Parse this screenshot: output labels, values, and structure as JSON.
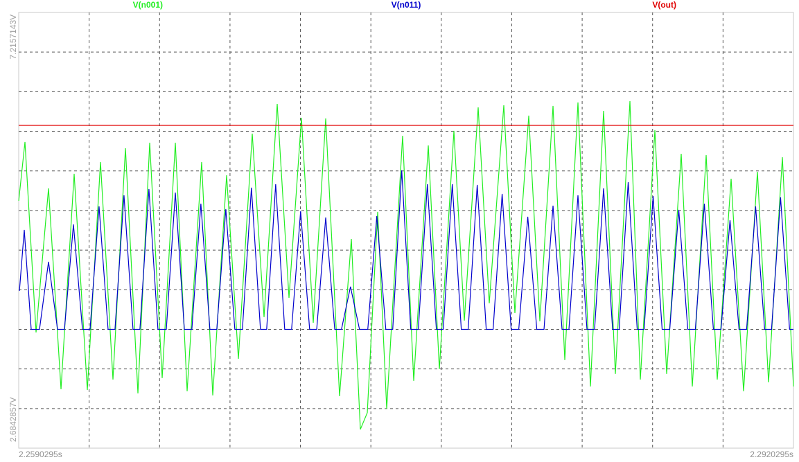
{
  "chart_data": {
    "type": "line",
    "legend": "top",
    "grid": true,
    "xlim": [
      2.2590295,
      2.2920295
    ],
    "ylim": [
      2.1807936,
      7.7192064
    ],
    "xticks": [
      {
        "value": 2.2590295,
        "label": "2.2590295s"
      },
      {
        "value": 2.2620295,
        "label": null
      },
      {
        "value": 2.2650295,
        "label": null
      },
      {
        "value": 2.2680295,
        "label": null
      },
      {
        "value": 2.2710295,
        "label": null
      },
      {
        "value": 2.2740295,
        "label": null
      },
      {
        "value": 2.2770295,
        "label": null
      },
      {
        "value": 2.2800295,
        "label": null
      },
      {
        "value": 2.2830295,
        "label": null
      },
      {
        "value": 2.2860295,
        "label": null
      },
      {
        "value": 2.2890295,
        "label": null
      },
      {
        "value": 2.2920295,
        "label": "2.2920295s"
      }
    ],
    "yticks": [
      {
        "value": 2.6842857,
        "label": "2.6842857V"
      },
      {
        "value": 3.1877778,
        "label": null
      },
      {
        "value": 3.6912698,
        "label": null
      },
      {
        "value": 4.1947619,
        "label": null
      },
      {
        "value": 4.698254,
        "label": null
      },
      {
        "value": 5.201746,
        "label": null
      },
      {
        "value": 5.7052381,
        "label": null
      },
      {
        "value": 6.2087302,
        "label": null
      },
      {
        "value": 6.7122222,
        "label": null
      },
      {
        "value": 7.2157143,
        "label": "7.2157143V"
      }
    ],
    "series": [
      {
        "name": "V(n001)",
        "color": "#22ee22",
        "x": [
          2.25903,
          2.259296,
          2.259768,
          2.260299,
          2.260831,
          2.261391,
          2.261952,
          2.262513,
          2.263044,
          2.263576,
          2.264107,
          2.264609,
          2.26514,
          2.265701,
          2.266203,
          2.266822,
          2.267295,
          2.267885,
          2.268387,
          2.268977,
          2.269479,
          2.27004,
          2.270542,
          2.271073,
          2.271575,
          2.272106,
          2.272696,
          2.273198,
          2.273582,
          2.273877,
          2.27432,
          2.274704,
          2.275382,
          2.275855,
          2.276475,
          2.276947,
          2.277567,
          2.27801,
          2.2786,
          2.279072,
          2.279692,
          2.280164,
          2.280755,
          2.281227,
          2.281788,
          2.28229,
          2.28285,
          2.283382,
          2.283942,
          2.284444,
          2.285064,
          2.285507,
          2.286127,
          2.286629,
          2.287248,
          2.287721,
          2.288311,
          2.288783,
          2.289374,
          2.289905,
          2.290495,
          2.290968,
          2.291558,
          2.292029
        ],
        "values": [
          5.325,
          6.073,
          3.652,
          5.483,
          2.93,
          5.668,
          2.921,
          5.818,
          3.053,
          5.994,
          2.877,
          6.064,
          3.071,
          6.064,
          2.904,
          5.818,
          2.851,
          5.65,
          3.317,
          6.179,
          3.846,
          6.557,
          4.092,
          6.381,
          3.775,
          6.372,
          2.842,
          4.84,
          2.419,
          2.631,
          5.184,
          2.683,
          6.152,
          3.036,
          6.029,
          3.185,
          6.214,
          3.802,
          6.513,
          4.022,
          6.54,
          3.898,
          6.408,
          3.793,
          6.531,
          3.3,
          6.575,
          2.965,
          6.469,
          3.124,
          6.592,
          3.053,
          6.223,
          3.124,
          5.923,
          2.965,
          5.906,
          3.053,
          5.606,
          2.904,
          5.694,
          3.018,
          5.879,
          2.965
        ]
      },
      {
        "name": "V(n011)",
        "color": "#0000cc",
        "x": [
          2.25906,
          2.259266,
          2.259561,
          2.259915,
          2.260299,
          2.260683,
          2.260977,
          2.261361,
          2.261745,
          2.262068,
          2.262452,
          2.262836,
          2.26313,
          2.263514,
          2.263898,
          2.264192,
          2.264576,
          2.26496,
          2.265317,
          2.265701,
          2.266085,
          2.266405,
          2.266789,
          2.267173,
          2.267467,
          2.267851,
          2.268235,
          2.268558,
          2.268942,
          2.269326,
          2.269591,
          2.269975,
          2.270359,
          2.270653,
          2.271037,
          2.271421,
          2.271722,
          2.272106,
          2.27249,
          2.272777,
          2.273161,
          2.273545,
          2.273898,
          2.274282,
          2.274666,
          2.27496,
          2.275344,
          2.275728,
          2.276051,
          2.276435,
          2.276819,
          2.277113,
          2.277497,
          2.277881,
          2.278175,
          2.278559,
          2.278943,
          2.279237,
          2.279621,
          2.280005,
          2.280329,
          2.280713,
          2.281097,
          2.281404,
          2.281788,
          2.282172,
          2.282466,
          2.28285,
          2.283234,
          2.283558,
          2.283942,
          2.284326,
          2.284606,
          2.28499,
          2.285374,
          2.285668,
          2.286052,
          2.286436,
          2.28676,
          2.287144,
          2.287528,
          2.287851,
          2.288235,
          2.288619,
          2.288943,
          2.289327,
          2.289711,
          2.290034,
          2.290418,
          2.290802,
          2.291096,
          2.29148,
          2.291864,
          2.292029
        ],
        "values": [
          4.18,
          4.955,
          3.691,
          3.691,
          4.55,
          3.691,
          3.691,
          5.025,
          3.691,
          3.691,
          5.254,
          3.691,
          3.691,
          5.395,
          3.691,
          3.691,
          5.474,
          3.691,
          3.691,
          5.43,
          3.691,
          3.691,
          5.289,
          3.691,
          3.691,
          5.219,
          3.691,
          3.691,
          5.492,
          3.691,
          3.691,
          5.536,
          3.691,
          3.691,
          5.193,
          3.691,
          3.691,
          5.113,
          3.691,
          3.691,
          4.233,
          3.691,
          3.691,
          5.131,
          3.691,
          3.691,
          5.712,
          3.691,
          3.691,
          5.536,
          3.691,
          3.691,
          5.536,
          3.691,
          3.691,
          5.527,
          3.691,
          3.691,
          5.413,
          3.691,
          3.691,
          5.122,
          3.691,
          3.691,
          5.263,
          3.691,
          3.691,
          5.395,
          3.691,
          3.691,
          5.483,
          3.691,
          3.691,
          5.562,
          3.691,
          3.691,
          5.386,
          3.691,
          3.691,
          5.21,
          3.691,
          3.691,
          5.289,
          3.691,
          3.691,
          5.078,
          3.691,
          3.691,
          5.254,
          3.691,
          3.691,
          5.369,
          3.691,
          3.691
        ]
      },
      {
        "name": "V(out)",
        "color": "#e00000",
        "x": [
          2.2590295,
          2.2920295
        ],
        "values": [
          6.284,
          6.284
        ]
      }
    ]
  }
}
